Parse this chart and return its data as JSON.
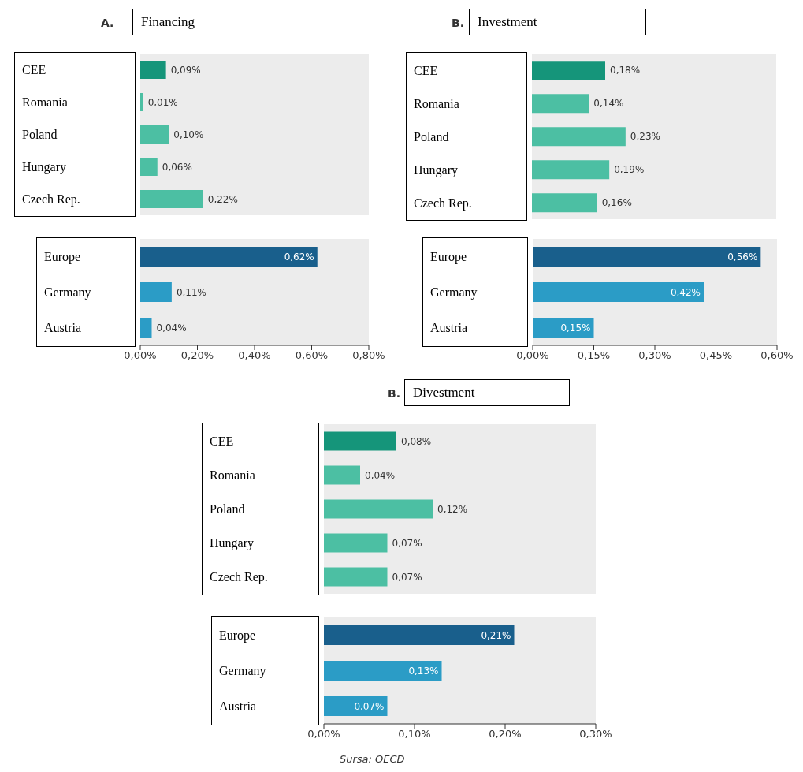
{
  "chart_data": [
    {
      "type": "bar",
      "orientation": "horizontal",
      "title": "Financing",
      "annotations": [
        "A."
      ],
      "categories": [
        "CEE",
        "Romania",
        "Poland",
        "Hungary",
        "Czech Rep."
      ],
      "values": [
        0.09,
        0.01,
        0.1,
        0.06,
        0.22
      ],
      "colors": [
        "#15957a",
        "#4cbfa3",
        "#4cbfa3",
        "#4cbfa3",
        "#4cbfa3"
      ],
      "value_labels": [
        "0,09%",
        "0,01%",
        "0,10%",
        "0,06%",
        "0,22%"
      ],
      "xlim": [
        0,
        0.8
      ],
      "tick_labels": "y",
      "grid": false
    },
    {
      "type": "bar",
      "orientation": "horizontal",
      "categories": [
        "Europe",
        "Germany",
        "Austria"
      ],
      "values": [
        0.62,
        0.11,
        0.04
      ],
      "colors": [
        "#195f8c",
        "#2b9cc6",
        "#2b9cc6"
      ],
      "value_labels": [
        "0,62%",
        "0,11%",
        "0,04%"
      ],
      "xlim": [
        0,
        0.8
      ],
      "xticks": [
        {
          "value": 0,
          "label": "0,00%"
        },
        {
          "value": 0.2,
          "label": "0,20%"
        },
        {
          "value": 0.4,
          "label": "0,40%"
        },
        {
          "value": 0.6,
          "label": "0,60%"
        },
        {
          "value": 0.8,
          "label": "0,80%"
        }
      ],
      "grid": false
    },
    {
      "type": "bar",
      "orientation": "horizontal",
      "title": "Investment",
      "annotations": [
        "B."
      ],
      "categories": [
        "CEE",
        "Romania",
        "Poland",
        "Hungary",
        "Czech Rep."
      ],
      "values": [
        0.18,
        0.14,
        0.23,
        0.19,
        0.16
      ],
      "colors": [
        "#15957a",
        "#4cbfa3",
        "#4cbfa3",
        "#4cbfa3",
        "#4cbfa3"
      ],
      "value_labels": [
        "0,18%",
        "0,14%",
        "0,23%",
        "0,19%",
        "0,16%"
      ],
      "xlim": [
        0,
        0.6
      ],
      "tick_labels": "y",
      "grid": false
    },
    {
      "type": "bar",
      "orientation": "horizontal",
      "categories": [
        "Europe",
        "Germany",
        "Austria"
      ],
      "values": [
        0.56,
        0.42,
        0.15
      ],
      "colors": [
        "#195f8c",
        "#2b9cc6",
        "#2b9cc6"
      ],
      "value_labels": [
        "0,56%",
        "0,42%",
        "0,15%"
      ],
      "xlim": [
        0,
        0.6
      ],
      "xticks": [
        {
          "value": 0,
          "label": "0,00%"
        },
        {
          "value": 0.15,
          "label": "0,15%"
        },
        {
          "value": 0.3,
          "label": "0,30%"
        },
        {
          "value": 0.45,
          "label": "0,45%"
        },
        {
          "value": 0.6,
          "label": "0,60%"
        }
      ],
      "grid": false
    },
    {
      "type": "bar",
      "orientation": "horizontal",
      "title": "Divestment",
      "annotations": [
        "B."
      ],
      "categories": [
        "CEE",
        "Romania",
        "Poland",
        "Hungary",
        "Czech Rep."
      ],
      "values": [
        0.08,
        0.04,
        0.12,
        0.07,
        0.07
      ],
      "colors": [
        "#15957a",
        "#4cbfa3",
        "#4cbfa3",
        "#4cbfa3",
        "#4cbfa3"
      ],
      "value_labels": [
        "0,08%",
        "0,04%",
        "0,12%",
        "0,07%",
        "0,07%"
      ],
      "xlim": [
        0,
        0.3
      ],
      "tick_labels": "y",
      "grid": false
    },
    {
      "type": "bar",
      "orientation": "horizontal",
      "categories": [
        "Europe",
        "Germany",
        "Austria"
      ],
      "values": [
        0.21,
        0.13,
        0.07
      ],
      "colors": [
        "#195f8c",
        "#2b9cc6",
        "#2b9cc6"
      ],
      "value_labels": [
        "0,21%",
        "0,13%",
        "0,07%"
      ],
      "xlim": [
        0,
        0.3
      ],
      "xticks": [
        {
          "value": 0,
          "label": "0,00%"
        },
        {
          "value": 0.1,
          "label": "0,10%"
        },
        {
          "value": 0.2,
          "label": "0,20%"
        },
        {
          "value": 0.3,
          "label": "0,30%"
        }
      ],
      "annotations": [
        "Sursa: OECD"
      ],
      "grid": false
    }
  ]
}
